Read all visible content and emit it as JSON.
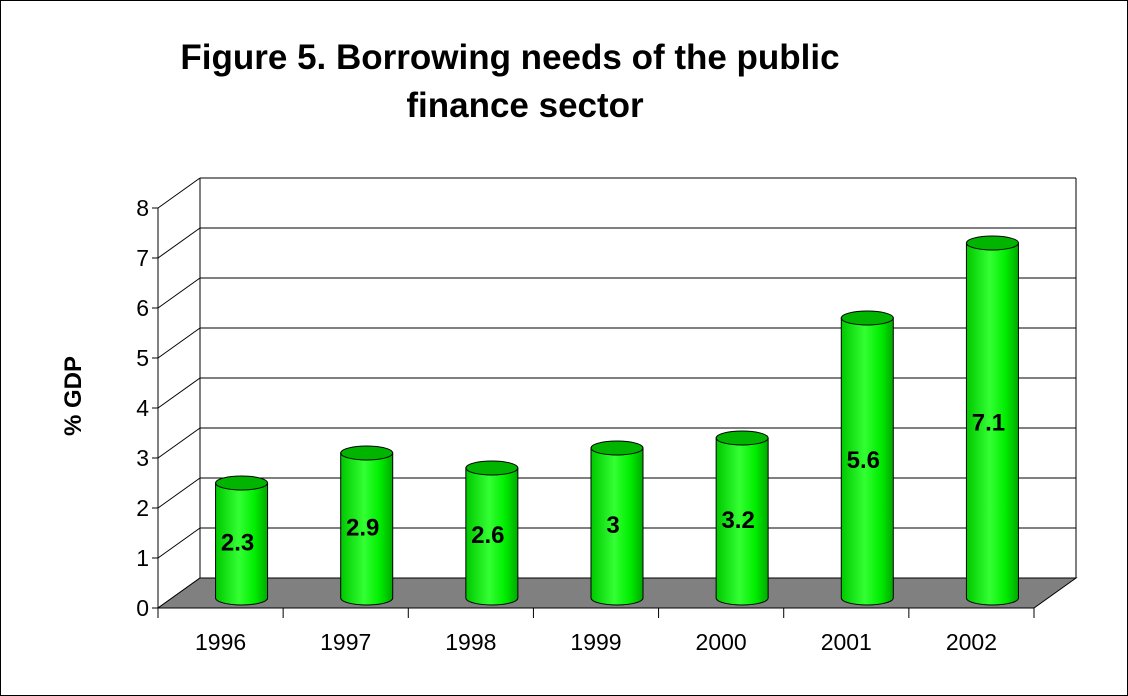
{
  "chart_data": {
    "type": "bar",
    "title_line1": "Figure 5. Borrowing needs of the public",
    "title_line2": "finance sector",
    "xlabel": "",
    "ylabel": "% GDP",
    "categories": [
      "1996",
      "1997",
      "1998",
      "1999",
      "2000",
      "2001",
      "2002"
    ],
    "values": [
      2.3,
      2.9,
      2.6,
      3,
      3.2,
      5.6,
      7.1
    ],
    "value_labels": [
      "2.3",
      "2.9",
      "2.6",
      "3",
      "3.2",
      "5.6",
      "7.1"
    ],
    "yticks": [
      "0",
      "1",
      "2",
      "3",
      "4",
      "5",
      "6",
      "7",
      "8"
    ],
    "ylim": [
      0,
      8
    ],
    "grid": true,
    "legend": "none",
    "bar_shape": "3d cylinder",
    "colors": {
      "bar": "#00ff00",
      "bar_dark": "#00b400",
      "floor": "#808080",
      "outline": "#000000"
    }
  }
}
